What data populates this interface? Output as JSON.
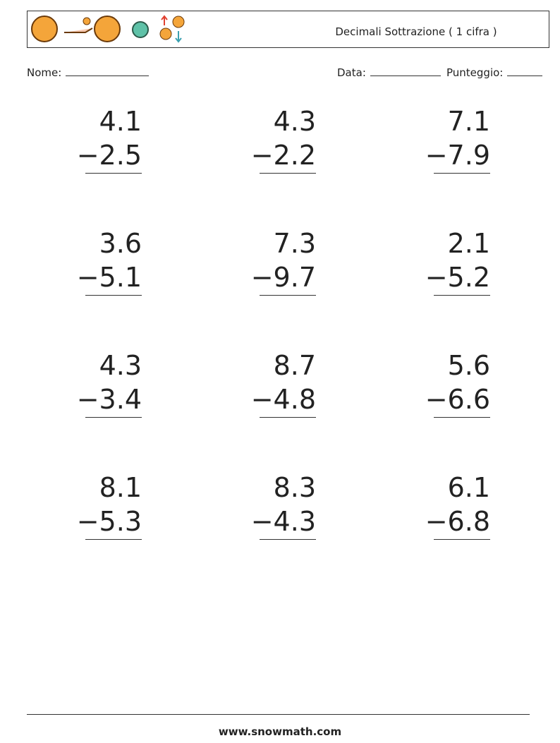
{
  "header": {
    "title": "Decimali Sottrazione ( 1 cifra )"
  },
  "fields": [
    {
      "label": "Nome:"
    },
    {
      "label": "Data:"
    },
    {
      "label": "Punteggio:"
    }
  ],
  "problems": [
    {
      "top": "4.1",
      "bottom": "−2.5"
    },
    {
      "top": "4.3",
      "bottom": "−2.2"
    },
    {
      "top": "7.1",
      "bottom": "−7.9"
    },
    {
      "top": "3.6",
      "bottom": "−5.1"
    },
    {
      "top": "7.3",
      "bottom": "−9.7"
    },
    {
      "top": "2.1",
      "bottom": "−5.2"
    },
    {
      "top": "4.3",
      "bottom": "−3.4"
    },
    {
      "top": "8.7",
      "bottom": "−4.8"
    },
    {
      "top": "5.6",
      "bottom": "−6.6"
    },
    {
      "top": "8.1",
      "bottom": "−5.3"
    },
    {
      "top": "8.3",
      "bottom": "−4.3"
    },
    {
      "top": "6.1",
      "bottom": "−6.8"
    }
  ],
  "footer": {
    "site": "www.snowmath.com"
  }
}
